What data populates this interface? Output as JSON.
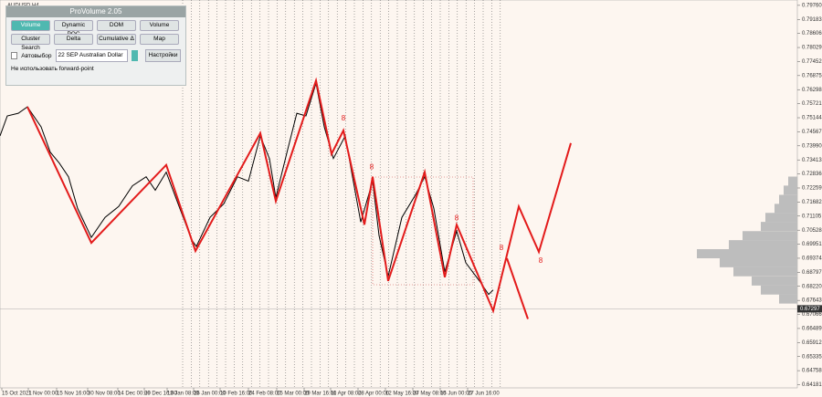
{
  "window": {
    "symbol": "AUDUSD,H4"
  },
  "panel": {
    "title": "ProVolume 2.05",
    "buttons": [
      "Volume Profile",
      "Dynamic POC",
      "DOM",
      "Volume",
      "Cluster Search",
      "Delta",
      "Cumulative Δ",
      "Map"
    ],
    "auto_select": "Автовыбор",
    "instrument": "22 SEP Australian Dollar",
    "settings": "Настройки",
    "forward_point": "Не использовать forward-point"
  },
  "chart_data": {
    "type": "line",
    "xlim": [
      0,
      873
    ],
    "ylim": [
      0.6405,
      0.7998
    ],
    "xticks": [
      {
        "value": 2,
        "label": "15 Oct 2021"
      },
      {
        "value": 31,
        "label": "1 Nov 00:00"
      },
      {
        "value": 62,
        "label": "15 Nov 16:00"
      },
      {
        "value": 96,
        "label": "30 Nov 08:00"
      },
      {
        "value": 129,
        "label": "14 Dec 00:00"
      },
      {
        "value": 158,
        "label": "29 Dec 16:00"
      },
      {
        "value": 183,
        "label": "13 Jan 08:00"
      },
      {
        "value": 212,
        "label": "26 Jan 00:00"
      },
      {
        "value": 241,
        "label": "10 Feb 16:00"
      },
      {
        "value": 272,
        "label": "24 Feb 08:00"
      },
      {
        "value": 303,
        "label": "15 Mar 00:00"
      },
      {
        "value": 333,
        "label": "29 Mar 16:00"
      },
      {
        "value": 362,
        "label": "11 Apr 08:00"
      },
      {
        "value": 392,
        "label": "28 Apr 00:00"
      },
      {
        "value": 422,
        "label": "12 May 16:00"
      },
      {
        "value": 452,
        "label": "27 May 08:00"
      },
      {
        "value": 482,
        "label": "15 Jun 00:00"
      },
      {
        "value": 512,
        "label": "27 Jun 16:00"
      }
    ],
    "yticks": [
      {
        "value": 0.7976,
        "label": "0.79760"
      },
      0.79183,
      0.78606,
      0.78029,
      0.77452,
      0.76875,
      0.76298,
      0.75721,
      0.75144,
      0.74567,
      {
        "value": 0.7399,
        "label": "0.73990"
      },
      0.73413,
      0.72836,
      0.72259,
      0.71682,
      0.71105,
      0.70528,
      0.69951,
      0.69374,
      0.68797,
      {
        "value": 0.6822,
        "label": "0.68220"
      },
      0.67643,
      0.67066,
      0.66489,
      0.65912,
      0.65335,
      0.64758,
      0.64181
    ],
    "current_price": 0.67297,
    "series": [
      {
        "name": "Price",
        "color": "#000000",
        "x": [
          0,
          8,
          20,
          30,
          45,
          55,
          65,
          75,
          85,
          100,
          115,
          130,
          145,
          160,
          170,
          182,
          195,
          210,
          215,
          230,
          245,
          260,
          272,
          285,
          295,
          302,
          315,
          325,
          335,
          346,
          355,
          365,
          378,
          385,
          395,
          408,
          415,
          425,
          440,
          455,
          465,
          475,
          487,
          500,
          510,
          525,
          535,
          540
        ],
        "values": [
          0.744,
          0.7522,
          0.7533,
          0.7559,
          0.7477,
          0.7373,
          0.7328,
          0.7272,
          0.7142,
          0.7023,
          0.7105,
          0.715,
          0.7235,
          0.7272,
          0.7217,
          0.7291,
          0.7161,
          0.7012,
          0.6986,
          0.7105,
          0.7161,
          0.7272,
          0.7254,
          0.744,
          0.7347,
          0.7187,
          0.7384,
          0.7533,
          0.7522,
          0.7656,
          0.7477,
          0.7347,
          0.744,
          0.7291,
          0.7086,
          0.7254,
          0.7031,
          0.6863,
          0.7105,
          0.7198,
          0.7272,
          0.7142,
          0.6882,
          0.7049,
          0.6919,
          0.6844,
          0.6789,
          0.6807
        ]
      },
      {
        "name": "Zigzag",
        "color": "#e31b1b",
        "x": [
          30,
          100,
          182,
          214,
          285,
          302,
          346,
          363,
          376,
          399,
          408,
          425,
          465,
          487,
          500,
          540,
          568,
          590,
          625
        ],
        "values": [
          0.75591,
          0.70007,
          0.73208,
          0.69672,
          0.74511,
          0.71719,
          0.7667,
          0.73655,
          0.74623,
          0.70751,
          0.72724,
          0.68443,
          0.7291,
          0.68592,
          0.70751,
          0.67215,
          0.71496,
          0.69635,
          0.74102
        ]
      },
      {
        "name": "Projection",
        "color": "#e31b1b",
        "x": [
          555,
          578
        ],
        "values": [
          0.69374,
          0.6688
        ]
      }
    ],
    "wave_labels": [
      {
        "text": "8",
        "x": 376,
        "y": 0.7511
      },
      {
        "text": "8",
        "x": 407,
        "y": 0.731
      },
      {
        "text": "8",
        "x": 500,
        "y": 0.7101
      },
      {
        "text": "8",
        "x": 549,
        "y": 0.6978
      },
      {
        "text": "8",
        "x": 592,
        "y": 0.6926
      }
    ],
    "profile": {
      "prices": [
        0.7254,
        0.7217,
        0.7179,
        0.7142,
        0.7105,
        0.7068,
        0.703,
        0.6993,
        0.6956,
        0.6919,
        0.6882,
        0.6844,
        0.6807,
        0.677
      ],
      "volumes": [
        10,
        15,
        20,
        25,
        35,
        40,
        60,
        75,
        110,
        85,
        70,
        50,
        40,
        20
      ]
    }
  }
}
